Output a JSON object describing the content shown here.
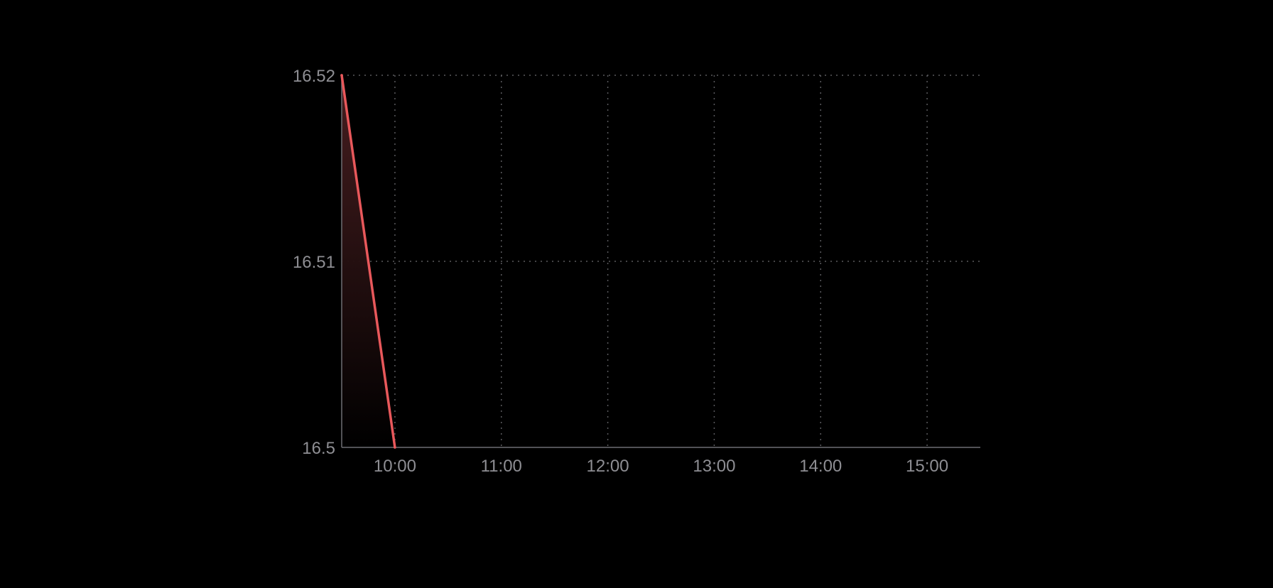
{
  "chart_data": {
    "type": "area",
    "title": "",
    "xlabel": "",
    "ylabel": "",
    "x_ticks": [
      "10:00",
      "11:00",
      "12:00",
      "13:00",
      "14:00",
      "15:00"
    ],
    "y_ticks": [
      "16.5",
      "16.51",
      "16.52"
    ],
    "x_range": [
      "09:30",
      "15:30"
    ],
    "ylim": [
      16.5,
      16.52
    ],
    "grid": true,
    "series": [
      {
        "x": [
          "09:30",
          "10:00"
        ],
        "y": [
          16.52,
          16.5
        ]
      }
    ],
    "colors": {
      "line": "#e8585b",
      "fill_top": "#4a1f21",
      "grid": "#5a5a5e",
      "axis": "#6e6e73",
      "tick_label": "#8e8e93",
      "background": "#000000"
    }
  }
}
